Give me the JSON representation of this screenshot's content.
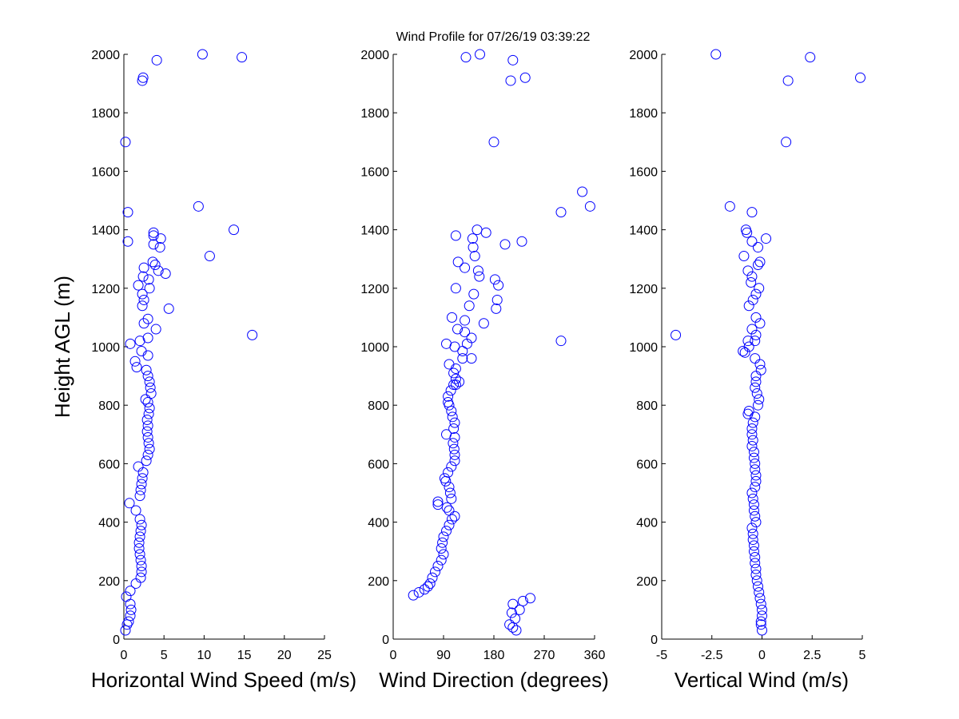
{
  "chart_data": {
    "title": "Wind Profile for  07/26/19 03:39:22",
    "ylabel": "Height AGL (m)",
    "marker_color": "#0000ff",
    "marker": "open-circle",
    "panels": [
      {
        "type": "scatter",
        "xlabel": "Horizontal Wind Speed (m/s)",
        "xlim": [
          0,
          25
        ],
        "ylim": [
          0,
          2000
        ],
        "xticks": [
          0,
          5,
          10,
          15,
          20,
          25
        ],
        "xtick_labels": [
          "0",
          "5",
          "10",
          "15",
          "20",
          "25"
        ],
        "yticks": [
          0,
          200,
          400,
          600,
          800,
          1000,
          1200,
          1400,
          1600,
          1800,
          2000
        ],
        "ytick_labels": [
          "0",
          "200",
          "400",
          "600",
          "800",
          "1000",
          "1200",
          "1400",
          "1600",
          "1800",
          "2000"
        ],
        "points": [
          [
            0.2,
            30
          ],
          [
            0.4,
            50
          ],
          [
            0.6,
            60
          ],
          [
            0.8,
            80
          ],
          [
            0.9,
            100
          ],
          [
            0.8,
            120
          ],
          [
            0.3,
            145
          ],
          [
            0.8,
            165
          ],
          [
            1.5,
            190
          ],
          [
            2.1,
            210
          ],
          [
            2.2,
            230
          ],
          [
            2.2,
            250
          ],
          [
            2.1,
            270
          ],
          [
            2.0,
            290
          ],
          [
            1.9,
            310
          ],
          [
            1.9,
            330
          ],
          [
            2.0,
            350
          ],
          [
            2.1,
            370
          ],
          [
            2.2,
            390
          ],
          [
            2.0,
            410
          ],
          [
            1.5,
            440
          ],
          [
            0.7,
            465
          ],
          [
            2.0,
            490
          ],
          [
            2.1,
            510
          ],
          [
            2.2,
            530
          ],
          [
            2.3,
            550
          ],
          [
            2.4,
            570
          ],
          [
            1.8,
            590
          ],
          [
            2.8,
            610
          ],
          [
            3.0,
            630
          ],
          [
            3.2,
            650
          ],
          [
            3.1,
            670
          ],
          [
            3.0,
            690
          ],
          [
            2.9,
            710
          ],
          [
            3.0,
            730
          ],
          [
            2.9,
            750
          ],
          [
            3.1,
            770
          ],
          [
            3.2,
            790
          ],
          [
            3.0,
            810
          ],
          [
            2.7,
            820
          ],
          [
            3.4,
            840
          ],
          [
            3.3,
            860
          ],
          [
            3.2,
            880
          ],
          [
            3.0,
            900
          ],
          [
            2.8,
            920
          ],
          [
            1.6,
            930
          ],
          [
            1.4,
            950
          ],
          [
            3.0,
            970
          ],
          [
            2.2,
            985
          ],
          [
            0.8,
            1010
          ],
          [
            2.0,
            1020
          ],
          [
            3.0,
            1030
          ],
          [
            4.0,
            1060
          ],
          [
            2.5,
            1080
          ],
          [
            3.0,
            1095
          ],
          [
            2.3,
            1140
          ],
          [
            5.6,
            1130
          ],
          [
            2.5,
            1160
          ],
          [
            2.3,
            1180
          ],
          [
            3.2,
            1200
          ],
          [
            1.8,
            1210
          ],
          [
            3.1,
            1230
          ],
          [
            2.4,
            1240
          ],
          [
            4.3,
            1260
          ],
          [
            2.5,
            1270
          ],
          [
            3.9,
            1280
          ],
          [
            3.6,
            1290
          ],
          [
            5.2,
            1250
          ],
          [
            3.7,
            1350
          ],
          [
            4.5,
            1340
          ],
          [
            4.6,
            1370
          ],
          [
            3.7,
            1380
          ],
          [
            3.7,
            1390
          ],
          [
            0.5,
            1360
          ],
          [
            0.5,
            1460
          ],
          [
            0.2,
            1700
          ],
          [
            9.3,
            1480
          ],
          [
            13.7,
            1400
          ],
          [
            10.7,
            1310
          ],
          [
            16.0,
            1040
          ],
          [
            2.3,
            1910
          ],
          [
            2.4,
            1920
          ],
          [
            4.1,
            1980
          ],
          [
            9.8,
            2000
          ],
          [
            14.7,
            1990
          ]
        ]
      },
      {
        "type": "scatter",
        "xlabel": "Wind Direction (degrees)",
        "xlim": [
          0,
          360
        ],
        "ylim": [
          0,
          2000
        ],
        "xticks": [
          0,
          90,
          180,
          270,
          360
        ],
        "xtick_labels": [
          "0",
          "90",
          "180",
          "270",
          "360"
        ],
        "yticks": [
          0,
          200,
          400,
          600,
          800,
          1000,
          1200,
          1400,
          1600,
          1800,
          2000
        ],
        "ytick_labels": [
          "0",
          "200",
          "400",
          "600",
          "800",
          "1000",
          "1200",
          "1400",
          "1600",
          "1800",
          "2000"
        ],
        "points": [
          [
            36,
            150
          ],
          [
            46,
            160
          ],
          [
            56,
            170
          ],
          [
            62,
            180
          ],
          [
            66,
            190
          ],
          [
            70,
            210
          ],
          [
            75,
            230
          ],
          [
            80,
            250
          ],
          [
            86,
            270
          ],
          [
            90,
            290
          ],
          [
            86,
            310
          ],
          [
            88,
            330
          ],
          [
            90,
            350
          ],
          [
            95,
            370
          ],
          [
            100,
            390
          ],
          [
            105,
            410
          ],
          [
            110,
            420
          ],
          [
            100,
            440
          ],
          [
            96,
            450
          ],
          [
            80,
            460
          ],
          [
            80,
            470
          ],
          [
            104,
            480
          ],
          [
            102,
            500
          ],
          [
            100,
            520
          ],
          [
            94,
            540
          ],
          [
            92,
            550
          ],
          [
            98,
            570
          ],
          [
            104,
            590
          ],
          [
            110,
            610
          ],
          [
            110,
            630
          ],
          [
            109,
            650
          ],
          [
            107,
            670
          ],
          [
            110,
            690
          ],
          [
            95,
            700
          ],
          [
            108,
            720
          ],
          [
            110,
            740
          ],
          [
            106,
            760
          ],
          [
            104,
            780
          ],
          [
            100,
            800
          ],
          [
            98,
            810
          ],
          [
            98,
            830
          ],
          [
            103,
            850
          ],
          [
            108,
            870
          ],
          [
            112,
            890
          ],
          [
            108,
            910
          ],
          [
            112,
            925
          ],
          [
            100,
            940
          ],
          [
            140,
            960
          ],
          [
            124,
            985
          ],
          [
            132,
            1010
          ],
          [
            95,
            1010
          ],
          [
            110,
            1000
          ],
          [
            140,
            1030
          ],
          [
            128,
            1050
          ],
          [
            115,
            1060
          ],
          [
            128,
            1090
          ],
          [
            105,
            1100
          ],
          [
            162,
            1080
          ],
          [
            136,
            1140
          ],
          [
            184,
            1130
          ],
          [
            144,
            1180
          ],
          [
            186,
            1160
          ],
          [
            112,
            1200
          ],
          [
            188,
            1210
          ],
          [
            182,
            1230
          ],
          [
            154,
            1240
          ],
          [
            152,
            1260
          ],
          [
            128,
            1270
          ],
          [
            116,
            1290
          ],
          [
            146,
            1310
          ],
          [
            143,
            1340
          ],
          [
            142,
            1370
          ],
          [
            112,
            1380
          ],
          [
            150,
            1400
          ],
          [
            166,
            1390
          ],
          [
            200,
            1350
          ],
          [
            230,
            1360
          ],
          [
            124,
            960
          ],
          [
            118,
            880
          ],
          [
            112,
            870
          ],
          [
            300,
            1460
          ],
          [
            338,
            1530
          ],
          [
            352,
            1480
          ],
          [
            300,
            1020
          ],
          [
            180,
            1700
          ],
          [
            130,
            1990
          ],
          [
            155,
            2000
          ],
          [
            210,
            1910
          ],
          [
            214,
            1980
          ],
          [
            236,
            1920
          ],
          [
            208,
            50
          ],
          [
            214,
            40
          ],
          [
            212,
            90
          ],
          [
            218,
            70
          ],
          [
            226,
            100
          ],
          [
            232,
            130
          ],
          [
            245,
            140
          ],
          [
            214,
            120
          ],
          [
            220,
            30
          ]
        ]
      },
      {
        "type": "scatter",
        "xlabel": "Vertical Wind (m/s)",
        "xlim": [
          -5,
          5
        ],
        "ylim": [
          0,
          2000
        ],
        "xticks": [
          -5,
          -2.5,
          0,
          2.5,
          5
        ],
        "xtick_labels": [
          "-5",
          "-2.5",
          "0",
          "2.5",
          "5"
        ],
        "yticks": [
          0,
          200,
          400,
          600,
          800,
          1000,
          1200,
          1400,
          1600,
          1800,
          2000
        ],
        "ytick_labels": [
          "0",
          "200",
          "400",
          "600",
          "800",
          "1000",
          "1200",
          "1400",
          "1600",
          "1800",
          "2000"
        ],
        "points": [
          [
            0.0,
            30
          ],
          [
            -0.05,
            50
          ],
          [
            -0.05,
            60
          ],
          [
            0.0,
            80
          ],
          [
            0.0,
            100
          ],
          [
            -0.05,
            120
          ],
          [
            -0.1,
            140
          ],
          [
            -0.15,
            160
          ],
          [
            -0.2,
            180
          ],
          [
            -0.25,
            200
          ],
          [
            -0.3,
            220
          ],
          [
            -0.3,
            240
          ],
          [
            -0.35,
            260
          ],
          [
            -0.35,
            280
          ],
          [
            -0.4,
            300
          ],
          [
            -0.4,
            320
          ],
          [
            -0.45,
            340
          ],
          [
            -0.45,
            360
          ],
          [
            -0.5,
            380
          ],
          [
            -0.3,
            400
          ],
          [
            -0.35,
            420
          ],
          [
            -0.4,
            440
          ],
          [
            -0.4,
            460
          ],
          [
            -0.45,
            480
          ],
          [
            -0.5,
            500
          ],
          [
            -0.35,
            520
          ],
          [
            -0.3,
            540
          ],
          [
            -0.3,
            560
          ],
          [
            -0.35,
            580
          ],
          [
            -0.35,
            600
          ],
          [
            -0.4,
            620
          ],
          [
            -0.4,
            640
          ],
          [
            -0.5,
            660
          ],
          [
            -0.45,
            680
          ],
          [
            -0.5,
            700
          ],
          [
            -0.5,
            720
          ],
          [
            -0.45,
            740
          ],
          [
            -0.35,
            760
          ],
          [
            -0.7,
            770
          ],
          [
            -0.65,
            780
          ],
          [
            -0.2,
            800
          ],
          [
            -0.15,
            820
          ],
          [
            -0.25,
            840
          ],
          [
            -0.35,
            860
          ],
          [
            -0.3,
            880
          ],
          [
            -0.3,
            900
          ],
          [
            -0.05,
            920
          ],
          [
            -0.1,
            940
          ],
          [
            -0.35,
            960
          ],
          [
            -0.85,
            980
          ],
          [
            -0.95,
            985
          ],
          [
            -0.65,
            1000
          ],
          [
            -0.7,
            1020
          ],
          [
            -0.35,
            1020
          ],
          [
            -0.3,
            1040
          ],
          [
            -0.5,
            1060
          ],
          [
            -0.1,
            1080
          ],
          [
            -0.3,
            1100
          ],
          [
            -0.65,
            1140
          ],
          [
            -0.45,
            1160
          ],
          [
            -0.3,
            1180
          ],
          [
            -0.15,
            1200
          ],
          [
            -0.55,
            1220
          ],
          [
            -0.5,
            1240
          ],
          [
            -0.7,
            1260
          ],
          [
            -0.2,
            1280
          ],
          [
            -0.1,
            1290
          ],
          [
            -0.9,
            1310
          ],
          [
            -0.2,
            1340
          ],
          [
            -0.5,
            1360
          ],
          [
            0.2,
            1370
          ],
          [
            -0.75,
            1390
          ],
          [
            -0.8,
            1400
          ],
          [
            -0.5,
            1460
          ],
          [
            -1.6,
            1480
          ],
          [
            -4.3,
            1040
          ],
          [
            1.2,
            1700
          ],
          [
            1.3,
            1910
          ],
          [
            2.4,
            1990
          ],
          [
            4.9,
            1920
          ],
          [
            -2.3,
            2000
          ]
        ]
      }
    ]
  }
}
